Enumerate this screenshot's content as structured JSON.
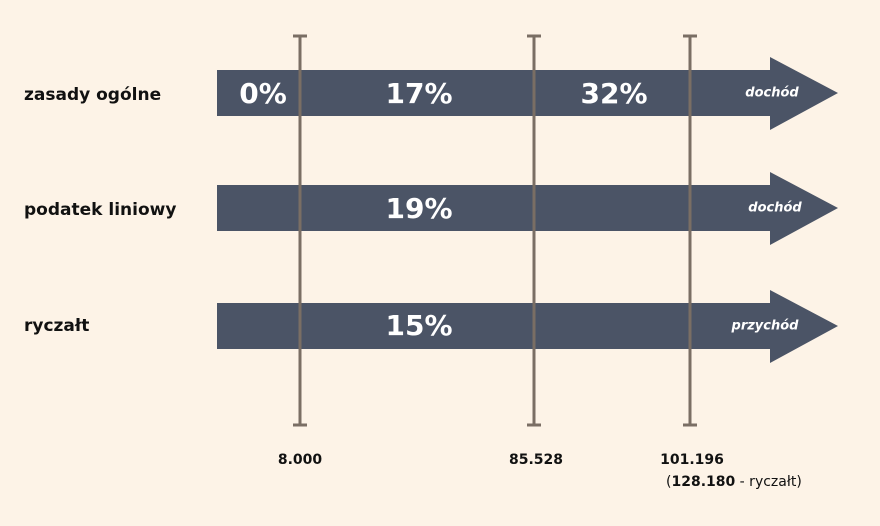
{
  "rows": [
    {
      "label": "zasady ogólne",
      "rates": [
        "0%",
        "17%",
        "32%"
      ],
      "end": "dochód"
    },
    {
      "label": "podatek liniowy",
      "rates": [
        "19%"
      ],
      "end": "dochód"
    },
    {
      "label": "ryczałt",
      "rates": [
        "15%"
      ],
      "end": "przychód"
    }
  ],
  "thresholds": [
    "8.000",
    "85.528",
    "101.196"
  ],
  "note": {
    "open": "(",
    "value": "128.180",
    "rest": " - ryczałt)"
  }
}
